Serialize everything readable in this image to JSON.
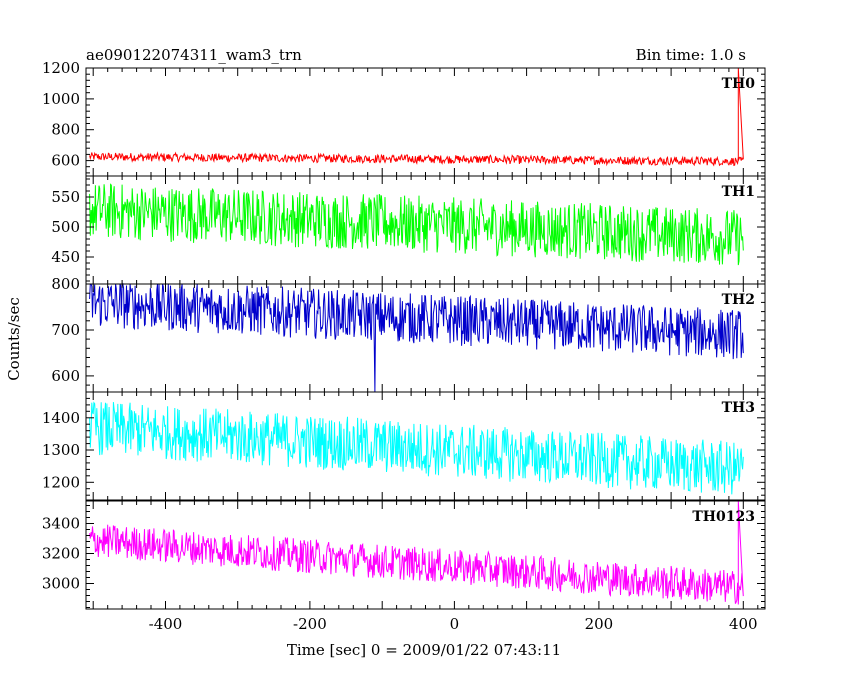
{
  "chart_data": {
    "type": "line",
    "title": "ae090122074311_wam3_trn",
    "bin_time_label": "Bin time: 1.0 s",
    "xlabel": "Time [sec] 0 = 2009/01/22 07:43:11",
    "ylabel": "Counts/sec",
    "xlim": [
      -510,
      430
    ],
    "x_ticks": [
      -400,
      -200,
      0,
      200,
      400
    ],
    "panels": [
      {
        "name": "TH0",
        "color": "#ff0000",
        "ylim": [
          500,
          1200
        ],
        "y_ticks": [
          600,
          800,
          1000,
          1200
        ],
        "x_range": [
          -505,
          400
        ],
        "mean_start": 625,
        "mean_end": 595,
        "noise": 55,
        "spike": {
          "x": 393,
          "value": 1200
        }
      },
      {
        "name": "TH1",
        "color": "#00ff00",
        "ylim": [
          405,
          585
        ],
        "y_ticks": [
          450,
          500,
          550
        ],
        "x_range": [
          -505,
          400
        ],
        "mean_start": 528,
        "mean_end": 482,
        "noise": 95
      },
      {
        "name": "TH2",
        "color": "#0000cc",
        "ylim": [
          565,
          800
        ],
        "y_ticks": [
          600,
          700,
          800
        ],
        "x_range": [
          -505,
          400
        ],
        "mean_start": 760,
        "mean_end": 690,
        "noise": 110,
        "dip": {
          "x": -110,
          "value": 565
        }
      },
      {
        "name": "TH3",
        "color": "#00ffff",
        "ylim": [
          1145,
          1480
        ],
        "y_ticks": [
          1200,
          1300,
          1400
        ],
        "x_range": [
          -505,
          400
        ],
        "mean_start": 1370,
        "mean_end": 1240,
        "noise": 170
      },
      {
        "name": "TH0123",
        "color": "#ff00ff",
        "ylim": [
          2830,
          3550
        ],
        "y_ticks": [
          3000,
          3200,
          3400
        ],
        "x_range": [
          -505,
          400
        ],
        "mean_start": 3290,
        "mean_end": 2970,
        "noise": 230,
        "spike": {
          "x": 393,
          "value": 3550
        }
      }
    ]
  }
}
